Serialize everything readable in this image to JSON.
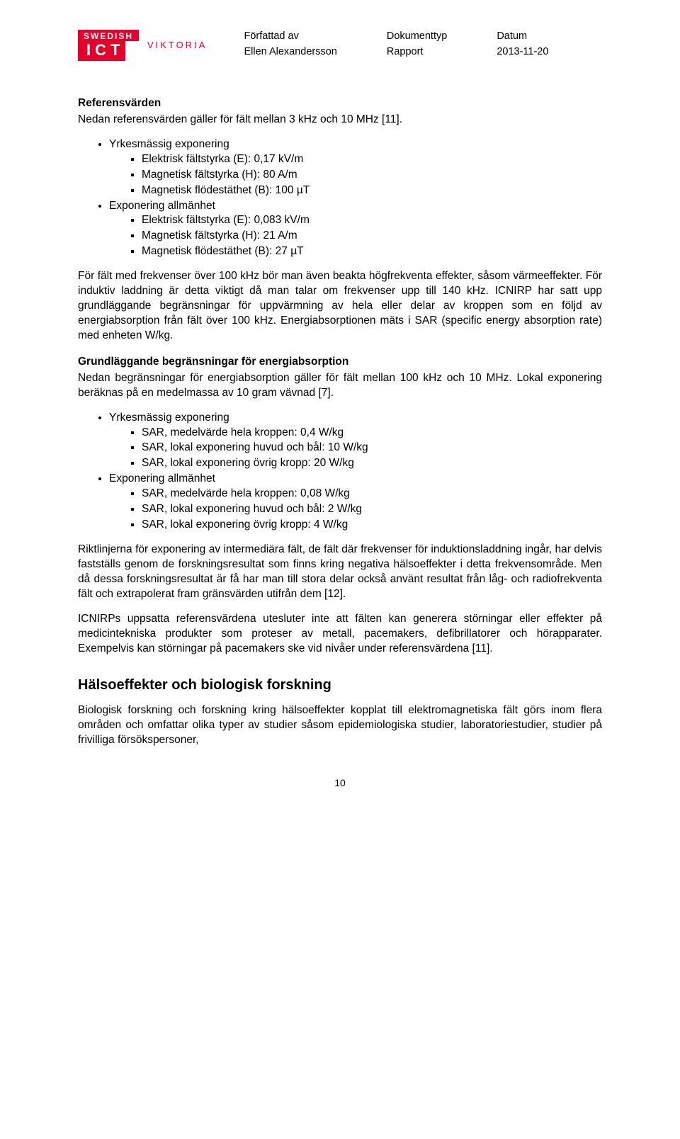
{
  "header": {
    "logo": {
      "swedish": "SWEDISH",
      "ict": "ICT",
      "viktoria": "VIKTORIA"
    },
    "meta": [
      {
        "label": "Författad av",
        "value": "Ellen Alexandersson"
      },
      {
        "label": "Dokumenttyp",
        "value": "Rapport"
      },
      {
        "label": "Datum",
        "value": "2013-11-20"
      }
    ]
  },
  "section_ref": {
    "title": "Referensvärden",
    "intro": "Nedan referensvärden gäller för fält mellan 3 kHz och 10 MHz [11].",
    "bullets": [
      {
        "label": "Yrkesmässig exponering",
        "sub": [
          "Elektrisk fältstyrka (E): 0,17 kV/m",
          "Magnetisk fältstyrka (H): 80 A/m",
          "Magnetisk flödestäthet (B): 100 µT"
        ]
      },
      {
        "label": "Exponering allmänhet",
        "sub": [
          "Elektrisk fältstyrka (E): 0,083 kV/m",
          "Magnetisk fältstyrka (H): 21 A/m",
          "Magnetisk flödestäthet (B): 27 µT"
        ]
      }
    ],
    "para1": "För fält med frekvenser över 100 kHz bör man även beakta högfrekventa effekter, såsom värmeeffekter. För induktiv laddning är detta viktigt då man talar om frekvenser upp till 140 kHz. ICNIRP har satt upp grundläggande begränsningar för uppvärmning av hela eller delar av kroppen som en följd av energiabsorption från fält över 100 kHz. Energiabsorptionen mäts i SAR (specific energy absorption rate) med enheten W/kg."
  },
  "section_grund": {
    "title": "Grundläggande begränsningar för energiabsorption",
    "intro": "Nedan begränsningar för energiabsorption gäller för fält mellan 100 kHz och 10 MHz. Lokal exponering beräknas på en medelmassa av 10 gram vävnad [7].",
    "bullets": [
      {
        "label": "Yrkesmässig exponering",
        "sub": [
          "SAR, medelvärde hela kroppen: 0,4 W/kg",
          "SAR, lokal exponering huvud och bål: 10 W/kg",
          "SAR, lokal exponering övrig kropp: 20 W/kg"
        ]
      },
      {
        "label": "Exponering allmänhet",
        "sub": [
          "SAR, medelvärde hela kroppen: 0,08 W/kg",
          "SAR, lokal exponering huvud och bål: 2 W/kg",
          "SAR, lokal exponering övrig kropp: 4 W/kg"
        ]
      }
    ],
    "para1": "Riktlinjerna för exponering av intermediära fält, de fält där frekvenser för induktionsladdning ingår, har delvis fastställs genom de forskningsresultat som finns kring negativa hälsoeffekter i detta frekvensområde. Men då dessa forskningsresultat är få har man till stora delar också använt resultat från låg- och radiofrekventa fält och extrapolerat fram gränsvärden utifrån dem [12].",
    "para2": "ICNIRPs uppsatta referensvärdena utesluter inte att fälten kan generera störningar eller effekter på medicintekniska produkter som proteser av metall, pacemakers, defibrillatorer och hörapparater. Exempelvis kan störningar på pacemakers ske vid nivåer under referensvärdena [11]."
  },
  "section_halso": {
    "title": "Hälsoeffekter och biologisk forskning",
    "para1": "Biologisk forskning och forskning kring hälsoeffekter kopplat till elektromagnetiska fält görs inom flera områden och omfattar olika typer av studier såsom epidemiologiska studier, laboratoriestudier, studier på frivilliga försökspersoner,"
  },
  "page_number": "10"
}
